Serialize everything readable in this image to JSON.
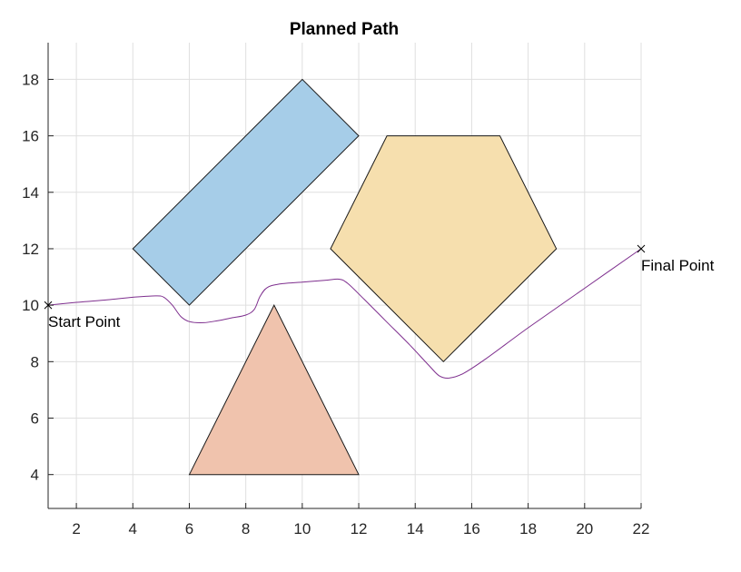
{
  "chart_data": {
    "type": "line",
    "title": "Planned Path",
    "xlabel": "",
    "ylabel": "",
    "xlim": [
      1,
      22
    ],
    "ylim": [
      2.8,
      19.3
    ],
    "xticks": [
      2,
      4,
      6,
      8,
      10,
      12,
      14,
      16,
      18,
      20,
      22
    ],
    "yticks": [
      4,
      6,
      8,
      10,
      12,
      14,
      16,
      18
    ],
    "grid": true,
    "obstacles": [
      {
        "name": "rectangle",
        "color": "#a6cde8",
        "vertices": [
          [
            4,
            12
          ],
          [
            10,
            18
          ],
          [
            12,
            16
          ],
          [
            6,
            10
          ]
        ]
      },
      {
        "name": "pentagon",
        "color": "#f6dfae",
        "vertices": [
          [
            13,
            16
          ],
          [
            17,
            16
          ],
          [
            19,
            12
          ],
          [
            15,
            8
          ],
          [
            11,
            12
          ]
        ]
      },
      {
        "name": "triangle",
        "color": "#f0c3ad",
        "vertices": [
          [
            9,
            10
          ],
          [
            6,
            4
          ],
          [
            12,
            4
          ]
        ]
      }
    ],
    "path": {
      "color": "#7e2f8e",
      "points": [
        [
          1,
          10
        ],
        [
          2,
          10.1
        ],
        [
          3,
          10.18
        ],
        [
          4,
          10.28
        ],
        [
          4.8,
          10.33
        ],
        [
          5.1,
          10.28
        ],
        [
          5.4,
          10.0
        ],
        [
          5.7,
          9.6
        ],
        [
          6.0,
          9.42
        ],
        [
          6.5,
          9.38
        ],
        [
          7.0,
          9.45
        ],
        [
          7.5,
          9.55
        ],
        [
          8.0,
          9.65
        ],
        [
          8.3,
          9.85
        ],
        [
          8.5,
          10.3
        ],
        [
          8.75,
          10.62
        ],
        [
          9.2,
          10.75
        ],
        [
          10,
          10.82
        ],
        [
          10.8,
          10.88
        ],
        [
          11.3,
          10.92
        ],
        [
          11.6,
          10.78
        ],
        [
          12.2,
          10.2
        ],
        [
          13,
          9.4
        ],
        [
          13.8,
          8.6
        ],
        [
          14.5,
          7.85
        ],
        [
          14.85,
          7.5
        ],
        [
          15.2,
          7.42
        ],
        [
          15.7,
          7.58
        ],
        [
          16.5,
          8.1
        ],
        [
          18,
          9.2
        ],
        [
          20,
          10.6
        ],
        [
          22,
          12
        ]
      ]
    },
    "markers": [
      {
        "x": 1,
        "y": 10,
        "label": "Start Point"
      },
      {
        "x": 22,
        "y": 12,
        "label": "Final Point"
      }
    ]
  }
}
